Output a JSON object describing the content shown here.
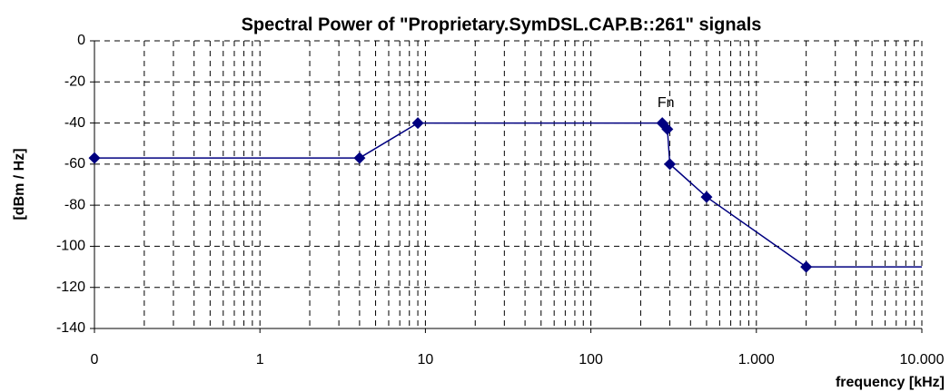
{
  "chart_data": {
    "type": "line",
    "title": "Spectral Power of \"Proprietary.SymDSL.CAP.B::261\" signals",
    "x_label": "frequency [kHz]",
    "y_label": "[dBm / Hz]",
    "x": [
      0.1,
      4,
      9,
      270,
      290,
      300,
      500,
      2000,
      10000
    ],
    "series": [
      {
        "color": "#000080",
        "values": [
          -57,
          -57,
          -40,
          -40,
          -43,
          -60,
          -76,
          -110,
          -110
        ]
      }
    ],
    "annotations": [
      {
        "text": "Fn"
      }
    ],
    "xscale": "log",
    "xlim": [
      0.1,
      10000
    ],
    "xticks": [
      {
        "value": 0.1,
        "label": "0"
      },
      1,
      10,
      100,
      {
        "value": 1000,
        "label": "1.000"
      },
      {
        "value": 10000,
        "label": "10.000"
      }
    ],
    "ylim": [
      -140,
      0
    ],
    "yticks": [
      -140,
      -120,
      -100,
      -80,
      -60,
      -40,
      -20,
      0
    ],
    "grid": true
  }
}
